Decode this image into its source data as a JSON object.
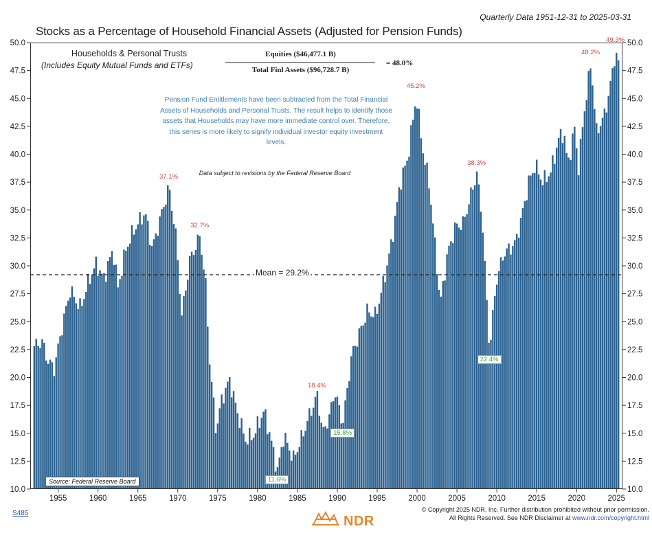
{
  "header": {
    "quarterly_note": "Quarterly Data 1951-12-31 to 2025-03-31",
    "title": "Stocks as a Percentage of Household Financial Assets (Adjusted for Pension Funds)"
  },
  "legend": {
    "series_title": "Households & Personal Trusts",
    "series_subtitle": "(Includes Equity Mutual Funds and ETFs)",
    "formula_numerator": "Equities ($46,477.1 B)",
    "formula_denominator": "Total Finl Assets ($96,728.7 B)",
    "formula_result": "= 48.0%"
  },
  "note": "Pension Fund Entitlements have been subtracted from the Total Financial Assets of Households and Personal Trusts. The result helps to identify those assets that Households may have more immediate control over. Therefore, this series is more likely to signify individual investor equity investment levels.",
  "disclaimer": "Data subject to revisions by the Federal Reserve Board",
  "source": "Source: Federal Reserve Board",
  "footer": {
    "code": "S485",
    "copyright_line1": "© Copyright 2025 NDR, Inc. Further distribution prohibited without prior permission.",
    "copyright_line2": "All Rights Reserved. See NDR Disclaimer at",
    "copyright_link": "www.ndr.com/copyright.html",
    "logo_text": "NDR"
  },
  "colors": {
    "bar": "#2d6391",
    "peak_label": "#d8443b",
    "trough_label": "#39a83b",
    "note_text": "#3d7fb4"
  },
  "chart_data": {
    "type": "bar",
    "frequency": "quarterly",
    "x_start": 1952,
    "x_end": 2025.25,
    "xlim": [
      1951.5,
      2025.75
    ],
    "ylim": [
      10,
      50
    ],
    "yticks": [
      "10.0",
      "12.5",
      "15.0",
      "17.5",
      "20.0",
      "22.5",
      "25.0",
      "27.5",
      "30.0",
      "32.5",
      "35.0",
      "37.5",
      "40.0",
      "42.5",
      "45.0",
      "47.5",
      "50.0"
    ],
    "xticks": [
      "1955",
      "1960",
      "1965",
      "1970",
      "1975",
      "1980",
      "1985",
      "1990",
      "1995",
      "2000",
      "2005",
      "2010",
      "2015",
      "2020",
      "2025"
    ],
    "mean": 29.2,
    "mean_label": "Mean = 29.2%",
    "grid": false,
    "anchors": [
      [
        1952.0,
        22.8
      ],
      [
        1953.0,
        23.2
      ],
      [
        1953.7,
        21.5
      ],
      [
        1954.5,
        20.8
      ],
      [
        1955.5,
        24.5
      ],
      [
        1956.5,
        27.8
      ],
      [
        1957.8,
        26.2
      ],
      [
        1958.9,
        28.8
      ],
      [
        1959.8,
        30.2
      ],
      [
        1960.7,
        28.8
      ],
      [
        1961.9,
        31.5
      ],
      [
        1962.5,
        28.0
      ],
      [
        1963.5,
        31.5
      ],
      [
        1964.5,
        33.2
      ],
      [
        1965.9,
        34.8
      ],
      [
        1966.8,
        31.5
      ],
      [
        1967.9,
        34.5
      ],
      [
        1968.9,
        37.1
      ],
      [
        1969.8,
        32.5
      ],
      [
        1970.5,
        25.5
      ],
      [
        1971.5,
        30.5
      ],
      [
        1972.8,
        32.7
      ],
      [
        1973.5,
        28.2
      ],
      [
        1974.0,
        21.5
      ],
      [
        1974.8,
        15.2
      ],
      [
        1975.5,
        18.0
      ],
      [
        1976.5,
        19.8
      ],
      [
        1977.5,
        16.8
      ],
      [
        1978.5,
        14.4
      ],
      [
        1979.5,
        14.8
      ],
      [
        1980.8,
        17.0
      ],
      [
        1981.5,
        15.0
      ],
      [
        1982.5,
        11.6
      ],
      [
        1983.3,
        14.8
      ],
      [
        1984.5,
        12.7
      ],
      [
        1985.5,
        14.5
      ],
      [
        1986.6,
        16.8
      ],
      [
        1987.5,
        18.4
      ],
      [
        1988.2,
        15.0
      ],
      [
        1989.0,
        16.5
      ],
      [
        1989.7,
        18.8
      ],
      [
        1990.7,
        15.8
      ],
      [
        1991.8,
        22.0
      ],
      [
        1992.8,
        24.0
      ],
      [
        1993.8,
        26.0
      ],
      [
        1994.8,
        25.5
      ],
      [
        1995.8,
        28.5
      ],
      [
        1996.8,
        32.0
      ],
      [
        1997.9,
        37.5
      ],
      [
        1998.8,
        39.5
      ],
      [
        1999.9,
        45.2
      ],
      [
        2000.8,
        40.0
      ],
      [
        2001.5,
        37.5
      ],
      [
        2002.5,
        30.0
      ],
      [
        2002.9,
        26.5
      ],
      [
        2003.8,
        31.0
      ],
      [
        2004.8,
        33.5
      ],
      [
        2005.8,
        33.8
      ],
      [
        2006.8,
        36.5
      ],
      [
        2007.5,
        38.3
      ],
      [
        2008.2,
        34.0
      ],
      [
        2008.8,
        26.0
      ],
      [
        2009.1,
        22.4
      ],
      [
        2009.9,
        28.5
      ],
      [
        2010.8,
        31.0
      ],
      [
        2011.5,
        31.5
      ],
      [
        2012.3,
        32.0
      ],
      [
        2013.0,
        34.0
      ],
      [
        2014.0,
        37.5
      ],
      [
        2014.8,
        39.0
      ],
      [
        2015.8,
        37.5
      ],
      [
        2016.8,
        38.5
      ],
      [
        2017.8,
        41.5
      ],
      [
        2018.4,
        42.0
      ],
      [
        2018.9,
        39.0
      ],
      [
        2019.8,
        42.5
      ],
      [
        2020.2,
        38.5
      ],
      [
        2020.9,
        43.5
      ],
      [
        2021.8,
        48.2
      ],
      [
        2022.5,
        42.0
      ],
      [
        2023.5,
        43.5
      ],
      [
        2024.2,
        46.0
      ],
      [
        2024.9,
        49.3
      ],
      [
        2025.25,
        48.0
      ]
    ],
    "peak_labels": [
      {
        "x": 1968.9,
        "value": 37.1,
        "text": "37.1%"
      },
      {
        "x": 1972.8,
        "value": 32.7,
        "text": "32.7%"
      },
      {
        "x": 1987.5,
        "value": 18.4,
        "text": "18.4%"
      },
      {
        "x": 1999.9,
        "value": 45.2,
        "text": "45.2%"
      },
      {
        "x": 2007.5,
        "value": 38.3,
        "text": "38.3%"
      },
      {
        "x": 2021.8,
        "value": 48.2,
        "text": "48.2%"
      },
      {
        "x": 2024.9,
        "value": 49.3,
        "text": "49.3%"
      }
    ],
    "trough_labels": [
      {
        "x": 1982.5,
        "value": 11.6,
        "text": "11.6%"
      },
      {
        "x": 1990.7,
        "value": 15.8,
        "text": "15.8%"
      },
      {
        "x": 2009.1,
        "value": 22.4,
        "text": "22.4%"
      }
    ]
  }
}
